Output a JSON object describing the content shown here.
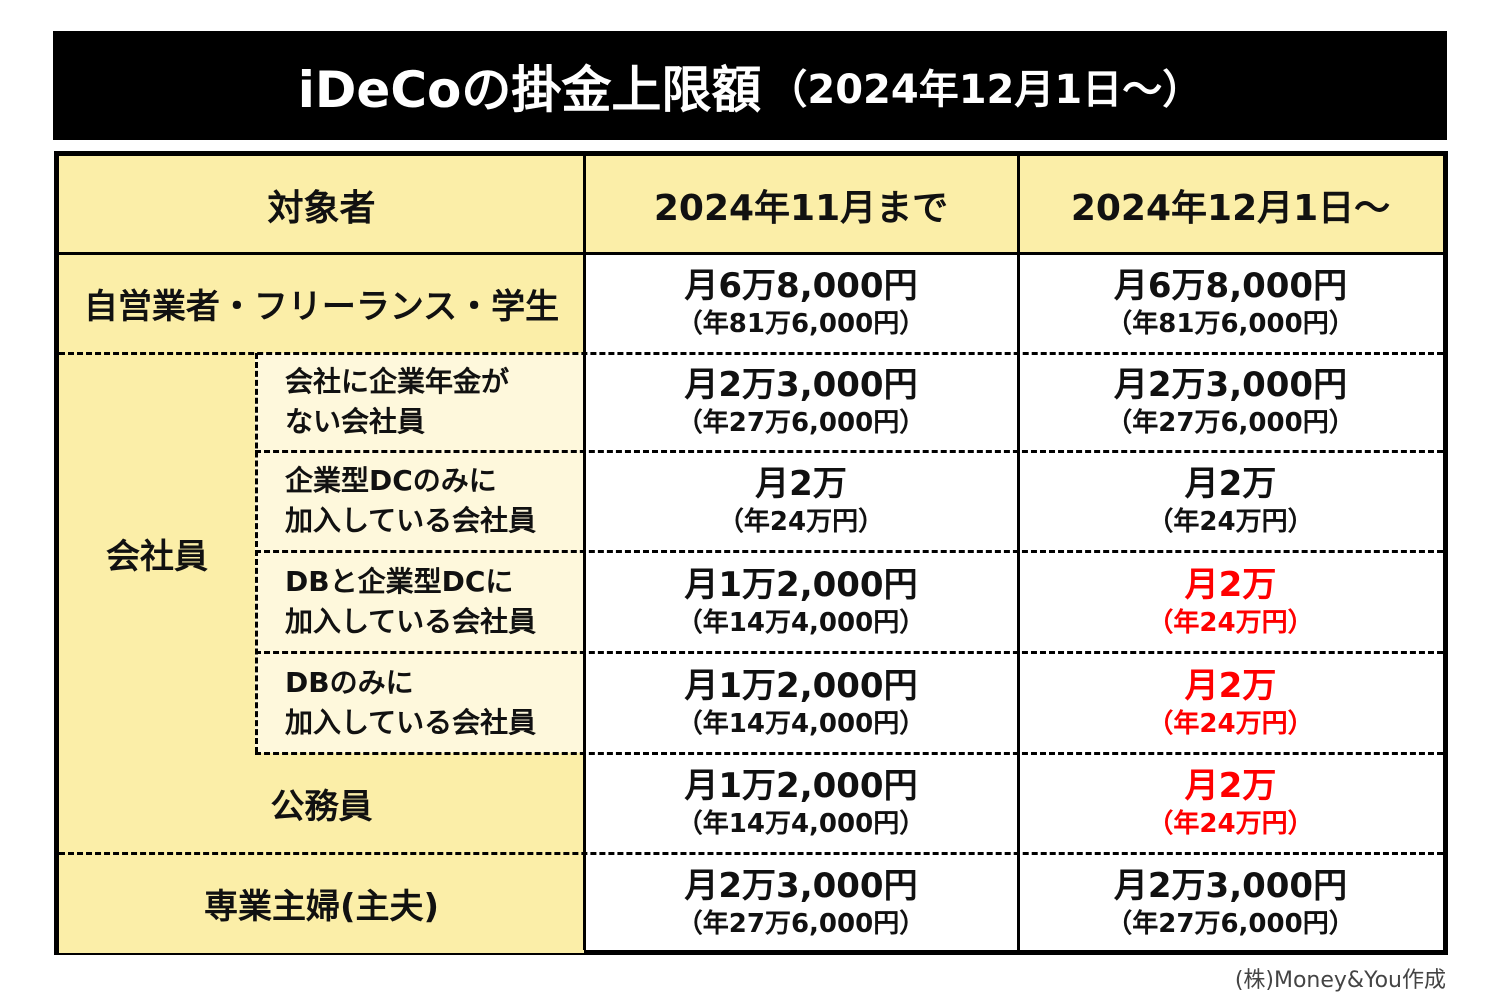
{
  "title": {
    "main": "iDeCoの掛金上限額",
    "sub": "（2024年12月1日～）"
  },
  "table": {
    "headers": [
      "対象者",
      "2024年11月まで",
      "2024年12月1日～"
    ],
    "group_label": "会社員",
    "rows": [
      {
        "label": "自営業者・フリーランス・学生",
        "before": {
          "monthly": "月6万8,000円",
          "yearly": "（年81万6,000円）"
        },
        "after": {
          "monthly": "月6万8,000円",
          "yearly": "（年81万6,000円）",
          "changed": false
        }
      },
      {
        "label": [
          "会社に企業年金が",
          "ない会社員"
        ],
        "before": {
          "monthly": "月2万3,000円",
          "yearly": "（年27万6,000円）"
        },
        "after": {
          "monthly": "月2万3,000円",
          "yearly": "（年27万6,000円）",
          "changed": false
        }
      },
      {
        "label": [
          "企業型DCのみに",
          "加入している会社員"
        ],
        "before": {
          "monthly": "月2万",
          "yearly": "（年24万円）"
        },
        "after": {
          "monthly": "月2万",
          "yearly": "（年24万円）",
          "changed": false
        }
      },
      {
        "label": [
          "DBと企業型DCに",
          "加入している会社員"
        ],
        "before": {
          "monthly": "月1万2,000円",
          "yearly": "（年14万4,000円）"
        },
        "after": {
          "monthly": "月2万",
          "yearly": "（年24万円）",
          "changed": true
        }
      },
      {
        "label": [
          "DBのみに",
          "加入している会社員"
        ],
        "before": {
          "monthly": "月1万2,000円",
          "yearly": "（年14万4,000円）"
        },
        "after": {
          "monthly": "月2万",
          "yearly": "（年24万円）",
          "changed": true
        }
      },
      {
        "label": "公務員",
        "before": {
          "monthly": "月1万2,000円",
          "yearly": "（年14万4,000円）"
        },
        "after": {
          "monthly": "月2万",
          "yearly": "（年24万円）",
          "changed": true
        }
      },
      {
        "label": "専業主婦(主夫)",
        "before": {
          "monthly": "月2万3,000円",
          "yearly": "（年27万6,000円）"
        },
        "after": {
          "monthly": "月2万3,000円",
          "yearly": "（年27万6,000円）",
          "changed": false
        }
      }
    ]
  },
  "credit": "(株)Money&You作成",
  "colors": {
    "header_bg": "#FBEEA8",
    "subcell_bg": "#FEF8DC",
    "highlight": "#FF0000",
    "title_bg": "#000000"
  }
}
